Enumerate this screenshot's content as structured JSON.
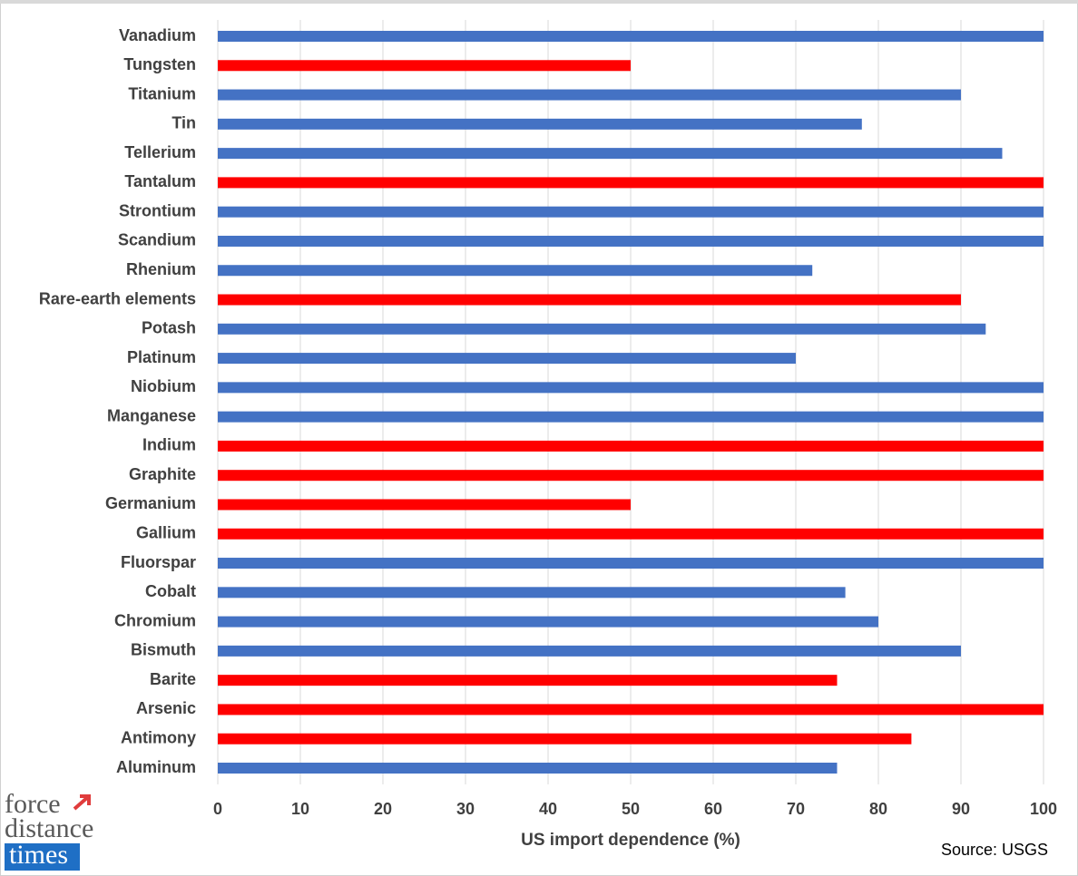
{
  "chart_data": {
    "type": "bar",
    "orientation": "horizontal",
    "categories": [
      "Vanadium",
      "Tungsten",
      "Titanium",
      "Tin",
      "Tellerium",
      "Tantalum",
      "Strontium",
      "Scandium",
      "Rhenium",
      "Rare-earth elements",
      "Potash",
      "Platinum",
      "Niobium",
      "Manganese",
      "Indium",
      "Graphite",
      "Germanium",
      "Gallium",
      "Fluorspar",
      "Cobalt",
      "Chromium",
      "Bismuth",
      "Barite",
      "Arsenic",
      "Antimony",
      "Aluminum"
    ],
    "values": [
      100,
      50,
      90,
      78,
      95,
      100,
      100,
      100,
      72,
      90,
      93,
      70,
      100,
      100,
      100,
      100,
      50,
      100,
      100,
      76,
      80,
      90,
      75,
      100,
      84,
      75
    ],
    "colors": [
      "#4472c4",
      "#ff0000",
      "#4472c4",
      "#4472c4",
      "#4472c4",
      "#ff0000",
      "#4472c4",
      "#4472c4",
      "#4472c4",
      "#ff0000",
      "#4472c4",
      "#4472c4",
      "#4472c4",
      "#4472c4",
      "#ff0000",
      "#ff0000",
      "#ff0000",
      "#ff0000",
      "#4472c4",
      "#4472c4",
      "#4472c4",
      "#4472c4",
      "#ff0000",
      "#ff0000",
      "#ff0000",
      "#4472c4"
    ],
    "xlabel": "US import dependence (%)",
    "xlim": [
      0,
      100
    ],
    "xticks": [
      0,
      10,
      20,
      30,
      40,
      50,
      60,
      70,
      80,
      90,
      100
    ],
    "grid": true,
    "source": "Source: USGS"
  },
  "logo": {
    "line1": "force",
    "line2": "distance",
    "line3": "times"
  }
}
